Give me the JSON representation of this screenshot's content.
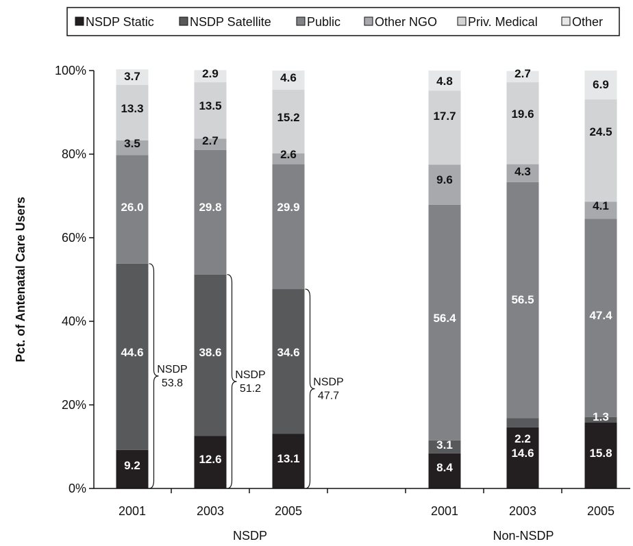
{
  "chart_data": {
    "type": "bar",
    "stacked": true,
    "normalized_percent": true,
    "ylabel": "Pct. of Antenatal Care Users",
    "ylim": [
      0,
      100
    ],
    "yticks": [
      "0%",
      "20%",
      "40%",
      "60%",
      "80%",
      "100%"
    ],
    "groups": [
      {
        "name": "NSDP",
        "categories": [
          "2001",
          "2003",
          "2005"
        ]
      },
      {
        "name": "Non-NSDP",
        "categories": [
          "2001",
          "2003",
          "2005"
        ]
      }
    ],
    "categories": [
      "2001",
      "2003",
      "2005",
      "2001",
      "2003",
      "2005"
    ],
    "legend_position": "top",
    "series": [
      {
        "name": "NSDP Static",
        "color": "#231f20",
        "values": [
          9.2,
          12.6,
          13.1,
          8.4,
          14.6,
          15.8
        ]
      },
      {
        "name": "NSDP Satellite",
        "color": "#58595b",
        "values": [
          44.6,
          38.6,
          34.6,
          3.1,
          2.2,
          1.3
        ]
      },
      {
        "name": "Public",
        "color": "#808285",
        "values": [
          26.0,
          29.8,
          29.9,
          56.4,
          56.5,
          47.4
        ]
      },
      {
        "name": "Other NGO",
        "color": "#a7a9ac",
        "values": [
          3.5,
          2.7,
          2.6,
          9.6,
          4.3,
          4.1
        ]
      },
      {
        "name": "Priv. Medical",
        "color": "#d1d3d4",
        "values": [
          13.3,
          13.5,
          15.2,
          17.7,
          19.6,
          24.5
        ]
      },
      {
        "name": "Other",
        "color": "#e6e7e8",
        "values": [
          3.7,
          2.9,
          4.6,
          4.8,
          2.7,
          6.9
        ]
      }
    ],
    "value_labels": [
      [
        "9.2",
        "44.6",
        "26.0",
        "3.5",
        "13.3",
        "3.7"
      ],
      [
        "12.6",
        "38.6",
        "29.8",
        "2.7",
        "13.5",
        "2.9"
      ],
      [
        "13.1",
        "34.6",
        "29.9",
        "2.6",
        "15.2",
        "4.6"
      ],
      [
        "8.4",
        "3.1",
        "56.4",
        "9.6",
        "17.7",
        "4.8"
      ],
      [
        "14.6",
        "2.2",
        "56.5",
        "4.3",
        "19.6",
        "2.7"
      ],
      [
        "15.8",
        "1.3",
        "47.4",
        "4.1",
        "24.5",
        "6.9"
      ]
    ],
    "annotations": [
      {
        "bar": 0,
        "text_line1": "NSDP",
        "text_line2": "53.8",
        "covers": "NSDP Static + NSDP Satellite"
      },
      {
        "bar": 1,
        "text_line1": "NSDP",
        "text_line2": "51.2",
        "covers": "NSDP Static + NSDP Satellite"
      },
      {
        "bar": 2,
        "text_line1": "NSDP",
        "text_line2": "47.7",
        "covers": "NSDP Static + NSDP Satellite"
      }
    ]
  }
}
